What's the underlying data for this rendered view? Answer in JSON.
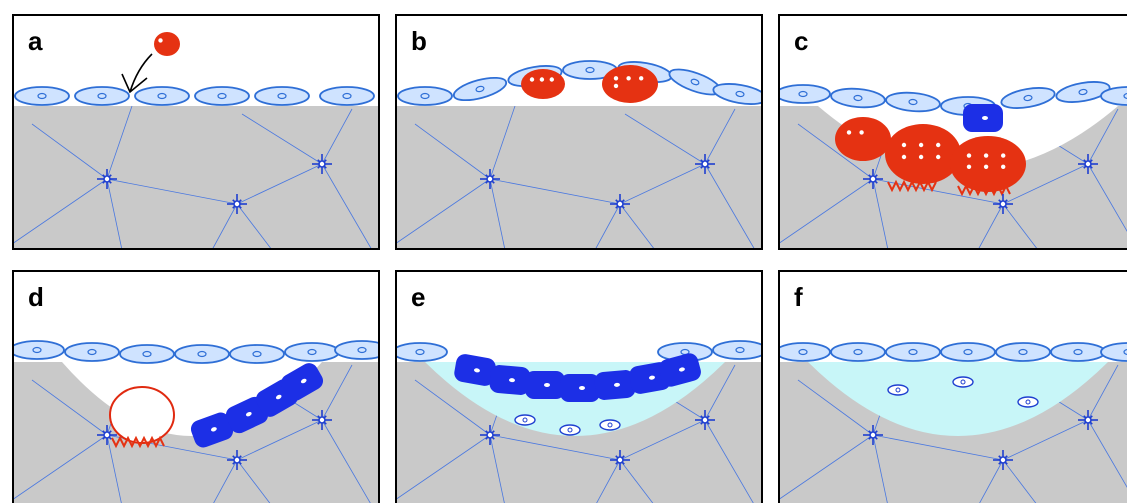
{
  "panels": [
    {
      "label": "a"
    },
    {
      "label": "b"
    },
    {
      "label": "c"
    },
    {
      "label": "d"
    },
    {
      "label": "e"
    },
    {
      "label": "f"
    }
  ]
}
